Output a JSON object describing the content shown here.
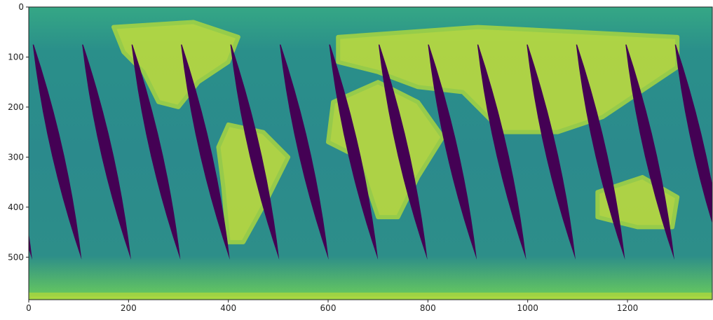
{
  "chart_data": {
    "type": "image",
    "xlim": [
      0,
      1370
    ],
    "ylim": [
      585,
      0
    ],
    "xticks": [
      0,
      200,
      400,
      600,
      800,
      1000,
      1200
    ],
    "yticks": [
      0,
      100,
      200,
      300,
      400,
      500
    ]
  }
}
